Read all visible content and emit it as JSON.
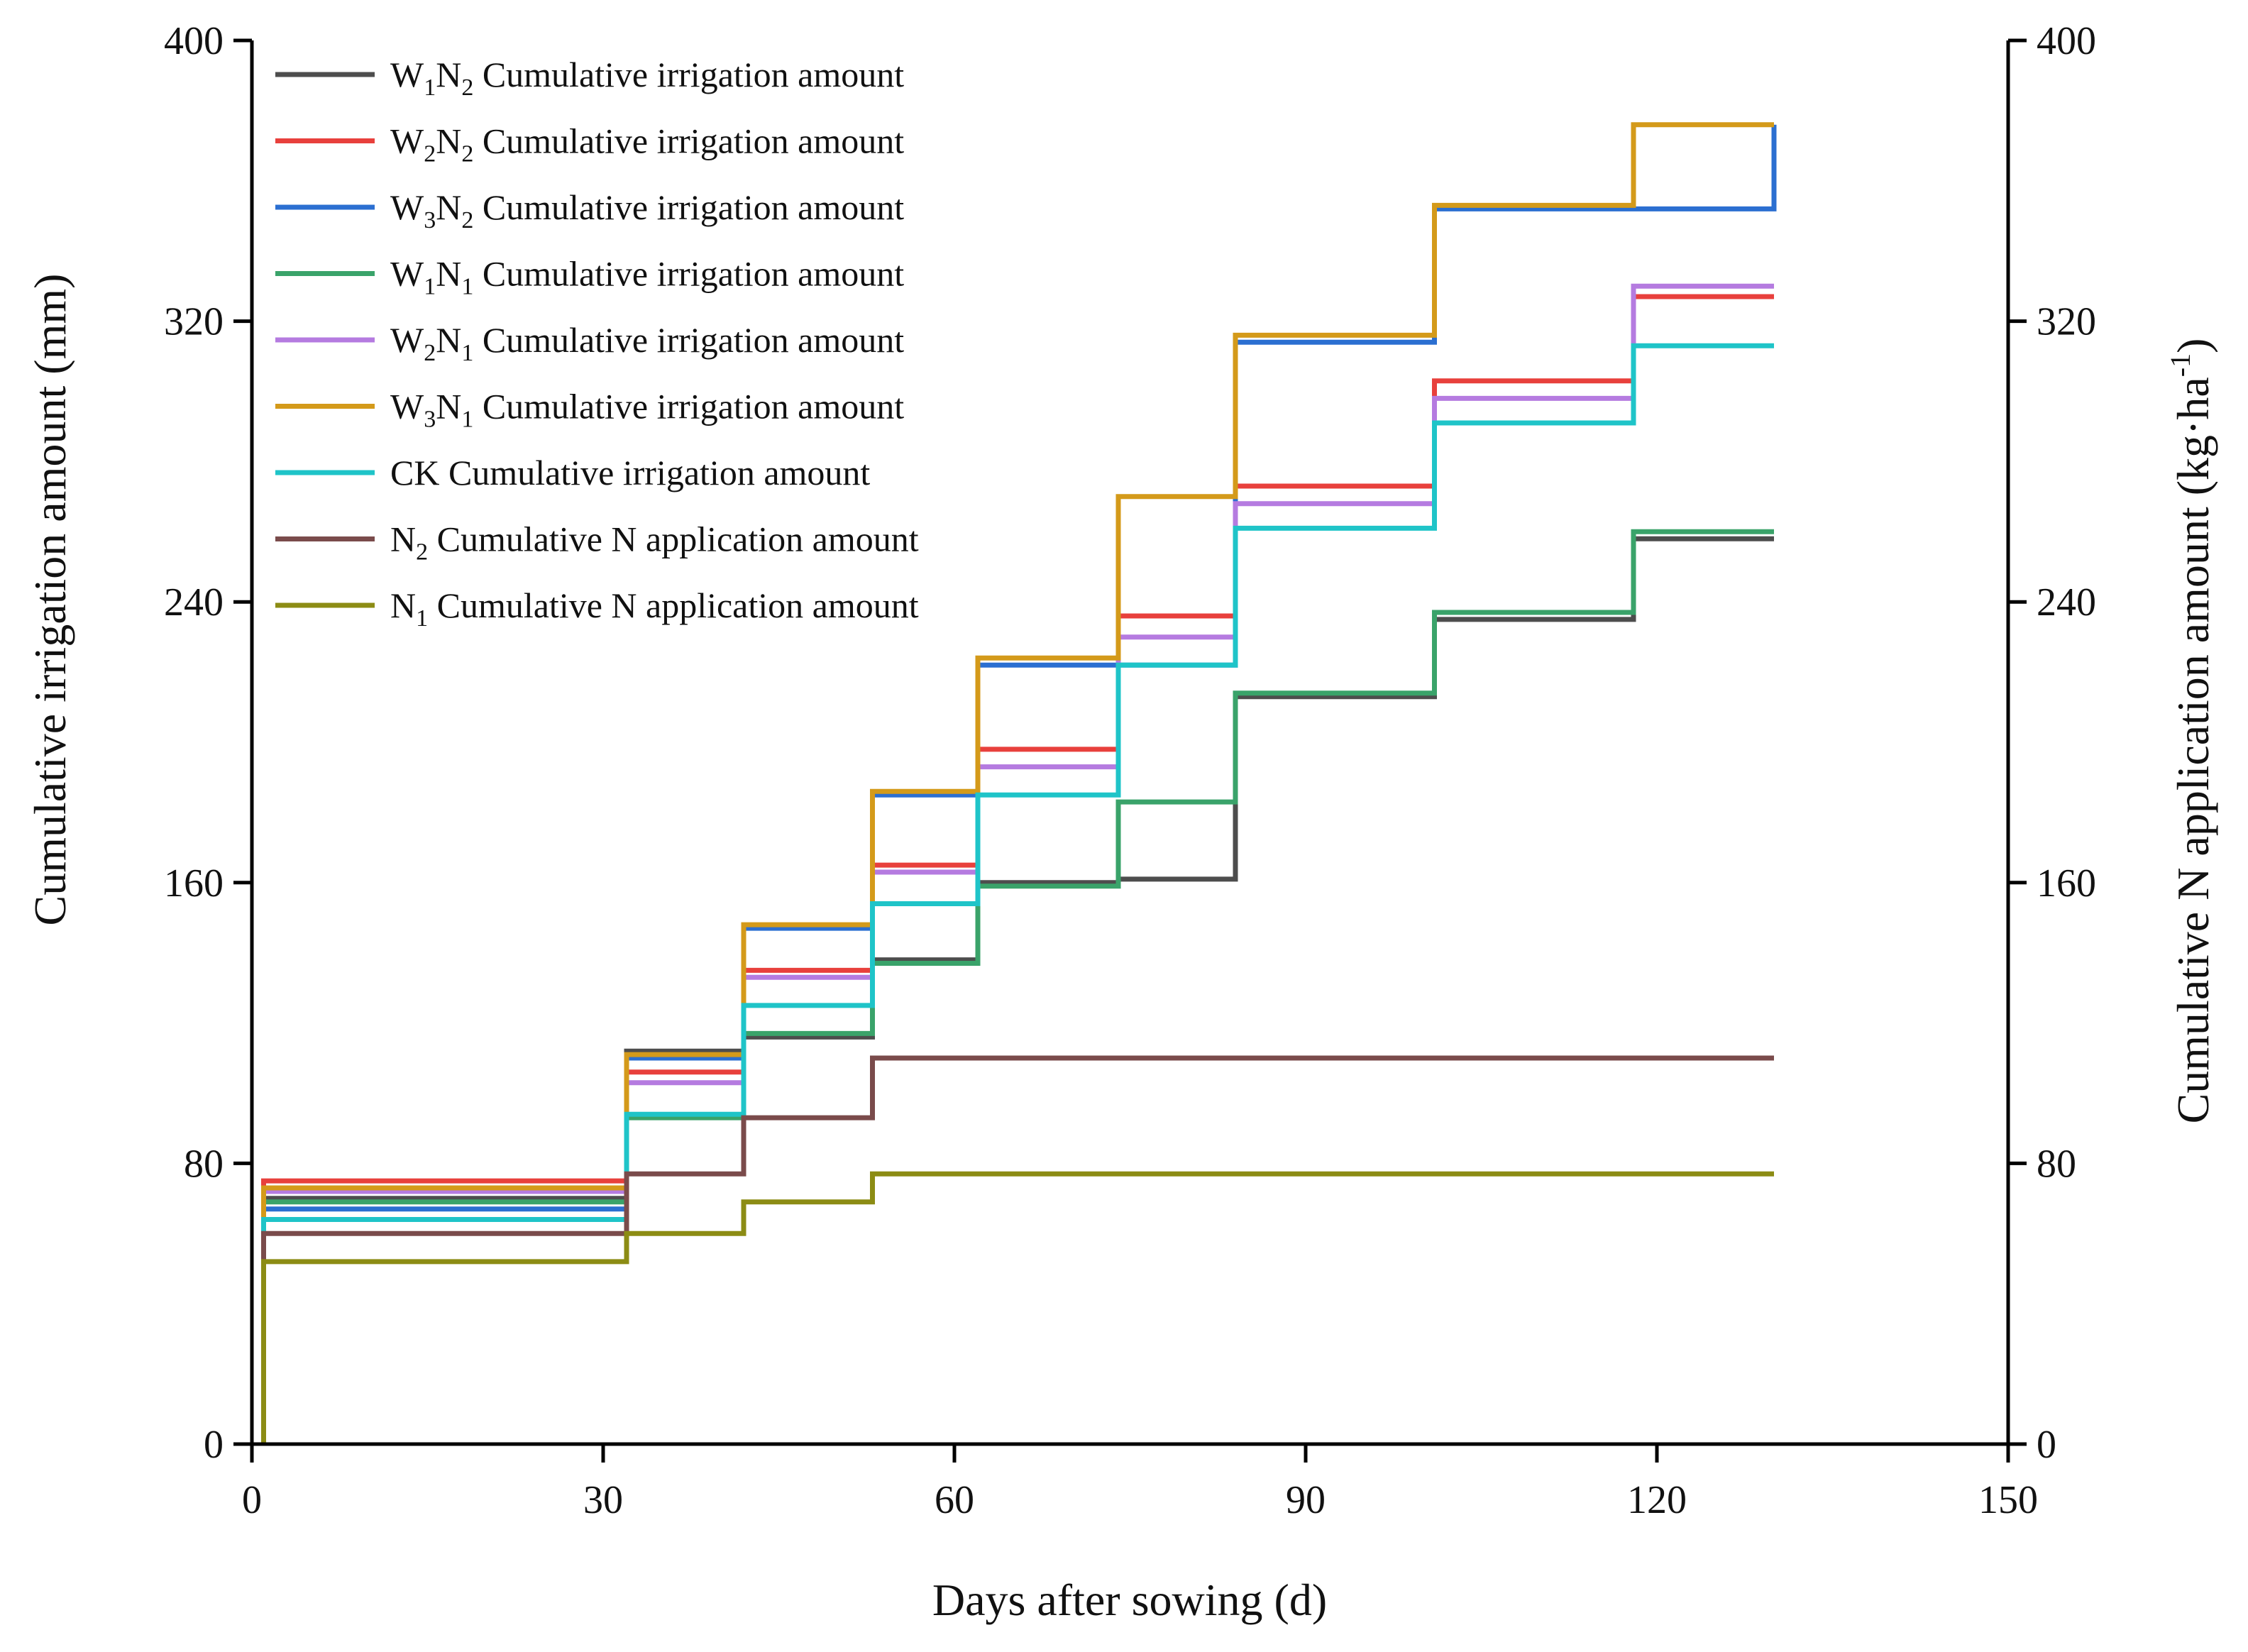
{
  "chart_data": {
    "type": "line",
    "step": true,
    "xlabel": "Days after sowing (d)",
    "ylabel": "Cumulative irrigation amount (mm)",
    "y2label": {
      "main": "Cumulative N application amount (kg·ha",
      "sup": "-1",
      "close": ")"
    },
    "xlim": [
      0,
      150
    ],
    "ylim": [
      0,
      400
    ],
    "y2lim": [
      0,
      400
    ],
    "xticks": [
      0,
      30,
      60,
      90,
      120,
      150
    ],
    "yticks": [
      0,
      80,
      160,
      240,
      320,
      400
    ],
    "y2ticks": [
      0,
      80,
      160,
      240,
      320,
      400
    ],
    "legend_position": "top-left",
    "series": [
      {
        "name": "W1N2 Cumulative irrigation amount",
        "label": {
          "prefix": "",
          "sub1": "1",
          "mid": "",
          "sub2": "2",
          "rest": " Cumulative irrigation amount",
          "l1": "W",
          "l2": "N"
        },
        "color": "#4d4d4d",
        "axis": "left",
        "x": [
          1,
          32,
          42,
          53,
          62,
          74,
          84,
          101,
          118,
          130
        ],
        "y": [
          70,
          112,
          116,
          138,
          160,
          161,
          213,
          235,
          258,
          258
        ]
      },
      {
        "name": "W2N2 Cumulative irrigation amount",
        "label": {
          "prefix": "",
          "sub1": "2",
          "mid": "",
          "sub2": "2",
          "rest": " Cumulative irrigation amount",
          "l1": "W",
          "l2": "N"
        },
        "color": "#e8403c",
        "axis": "left",
        "x": [
          1,
          32,
          42,
          53,
          62,
          74,
          84,
          101,
          118,
          130
        ],
        "y": [
          75,
          106,
          135,
          165,
          198,
          236,
          273,
          303,
          327,
          327
        ]
      },
      {
        "name": "W3N2 Cumulative irrigation amount",
        "label": {
          "prefix": "",
          "sub1": "3",
          "mid": "",
          "sub2": "2",
          "rest": " Cumulative irrigation amount",
          "l1": "W",
          "l2": "N"
        },
        "color": "#2b6fd1",
        "axis": "left",
        "x": [
          1,
          32,
          42,
          53,
          62,
          74,
          84,
          101,
          118,
          130
        ],
        "y": [
          67,
          110,
          147,
          185,
          222,
          222,
          314,
          352,
          352,
          376
        ]
      },
      {
        "name": "W1N1 Cumulative irrigation amount",
        "label": {
          "prefix": "",
          "sub1": "1",
          "mid": "",
          "sub2": "1",
          "rest": " Cumulative irrigation amount",
          "l1": "W",
          "l2": "N"
        },
        "color": "#3aa36a",
        "axis": "left",
        "x": [
          1,
          32,
          42,
          53,
          62,
          74,
          84,
          101,
          118,
          130
        ],
        "y": [
          69,
          93,
          117,
          137,
          159,
          183,
          214,
          237,
          260,
          260
        ]
      },
      {
        "name": "W2N1 Cumulative irrigation amount",
        "label": {
          "prefix": "",
          "sub1": "2",
          "mid": "",
          "sub2": "1",
          "rest": " Cumulative irrigation amount",
          "l1": "W",
          "l2": "N"
        },
        "color": "#b57be0",
        "axis": "left",
        "x": [
          1,
          32,
          42,
          53,
          62,
          74,
          84,
          101,
          118,
          130
        ],
        "y": [
          72,
          103,
          133,
          163,
          193,
          230,
          268,
          298,
          330,
          330
        ]
      },
      {
        "name": "W3N1 Cumulative irrigation amount",
        "label": {
          "prefix": "",
          "sub1": "3",
          "mid": "",
          "sub2": "1",
          "rest": " Cumulative irrigation amount",
          "l1": "W",
          "l2": "N"
        },
        "color": "#d49a1a",
        "axis": "left",
        "x": [
          1,
          32,
          42,
          53,
          62,
          74,
          84,
          101,
          118,
          130
        ],
        "y": [
          73,
          111,
          148,
          186,
          224,
          270,
          316,
          353,
          376,
          376
        ]
      },
      {
        "name": "CK Cumulative irrigation amount",
        "label": {
          "prefix": "CK Cumulative irrigation amount",
          "sub1": "",
          "mid": "",
          "sub2": "",
          "rest": "",
          "l1": "",
          "l2": ""
        },
        "color": "#1fc4c8",
        "axis": "left",
        "x": [
          1,
          32,
          42,
          53,
          62,
          74,
          84,
          101,
          118,
          130
        ],
        "y": [
          64,
          94,
          125,
          154,
          185,
          222,
          261,
          291,
          313,
          313
        ]
      },
      {
        "name": "N2 Cumulative N application amount",
        "label": {
          "prefix": "",
          "sub1": "",
          "mid": "",
          "sub2": "2",
          "rest": " Cumulative N application amount",
          "l1": "",
          "l2": "N"
        },
        "color": "#7a4b4b",
        "axis": "right",
        "x": [
          1,
          32,
          42,
          53,
          130
        ],
        "y": [
          60,
          77,
          93,
          110,
          110
        ]
      },
      {
        "name": "N1 Cumulative N application amount",
        "label": {
          "prefix": "",
          "sub1": "",
          "mid": "",
          "sub2": "1",
          "rest": " Cumulative N application amount",
          "l1": "",
          "l2": "N"
        },
        "color": "#8c8c14",
        "axis": "right",
        "x": [
          1,
          32,
          42,
          53,
          130
        ],
        "y": [
          52,
          60,
          69,
          77,
          77
        ]
      }
    ]
  }
}
